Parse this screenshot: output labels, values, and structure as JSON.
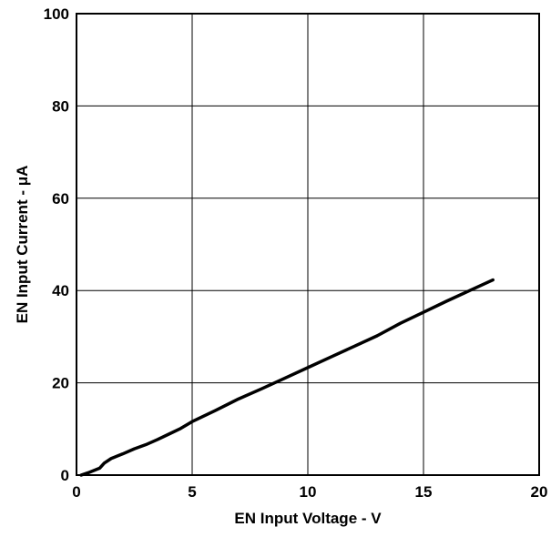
{
  "chart_data": {
    "type": "line",
    "xlabel": "EN Input Voltage - V",
    "ylabel": "EN Input Current - μA",
    "xlim": [
      0,
      20
    ],
    "ylim": [
      0,
      100
    ],
    "x_ticks": [
      0,
      5,
      10,
      15,
      20
    ],
    "y_ticks": [
      0,
      20,
      40,
      60,
      80,
      100
    ],
    "x_tick_labels": [
      "0",
      "5",
      "10",
      "15",
      "20"
    ],
    "y_tick_labels": [
      "0",
      "20",
      "40",
      "60",
      "80",
      "100"
    ],
    "grid": true,
    "line_color": "#000000",
    "series": [
      {
        "x": [
          0.2,
          0.5,
          1.0,
          1.2,
          1.5,
          2.0,
          2.5,
          3.0,
          3.5,
          4.0,
          4.5,
          5.0,
          6.0,
          7.0,
          8.0,
          9.0,
          10.0,
          11.0,
          12.0,
          13.0,
          14.0,
          15.0,
          16.0,
          17.0,
          18.0
        ],
        "y": [
          0.0,
          0.5,
          1.5,
          2.6,
          3.6,
          4.6,
          5.7,
          6.6,
          7.7,
          8.9,
          10.1,
          11.6,
          14.0,
          16.5,
          18.7,
          21.0,
          23.3,
          25.6,
          27.9,
          30.2,
          32.9,
          35.3,
          37.7,
          40.0,
          42.3
        ]
      }
    ]
  }
}
